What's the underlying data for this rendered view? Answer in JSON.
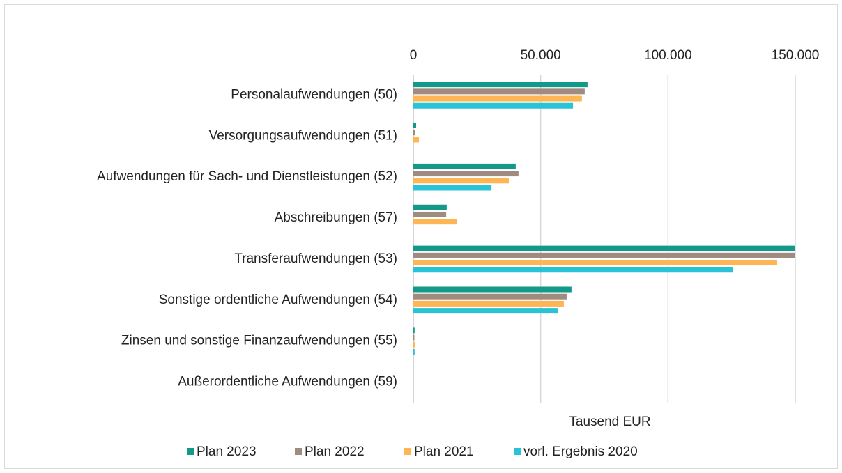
{
  "chart_data": {
    "type": "hbar",
    "categories": [
      "Personalaufwendungen (50)",
      "Versorgungsaufwendungen (51)",
      "Aufwendungen für Sach- und Dienstleistungen (52)",
      "Abschreibungen (57)",
      "Transferaufwendungen (53)",
      "Sonstige ordentliche Aufwendungen (54)",
      "Zinsen und sonstige Finanzaufwendungen (55)",
      "Außerordentliche Aufwendungen (59)"
    ],
    "series": [
      {
        "name": "Plan 2023",
        "color": "#13998a",
        "values": [
          68400,
          1100,
          40200,
          13100,
          150000,
          62100,
          500,
          0
        ]
      },
      {
        "name": "Plan 2022",
        "color": "#a08b80",
        "values": [
          67300,
          800,
          41300,
          12900,
          150000,
          60200,
          400,
          0
        ]
      },
      {
        "name": "Plan 2021",
        "color": "#fdb653",
        "values": [
          66200,
          2200,
          37500,
          17200,
          142900,
          59100,
          600,
          0
        ]
      },
      {
        "name": "vorl. Ergebnis 2020",
        "color": "#2ac3d6",
        "values": [
          62700,
          0,
          30700,
          0,
          125600,
          56700,
          500,
          0
        ]
      }
    ],
    "xlabel": "Tausend EUR",
    "xlim": [
      0,
      150000
    ],
    "xticks": [
      0,
      {
        "value": 50000,
        "label": "50.000"
      },
      {
        "value": 100000,
        "label": "100.000"
      },
      {
        "value": 150000,
        "label": "150.000"
      }
    ],
    "grid": true,
    "legend": "bottom"
  }
}
